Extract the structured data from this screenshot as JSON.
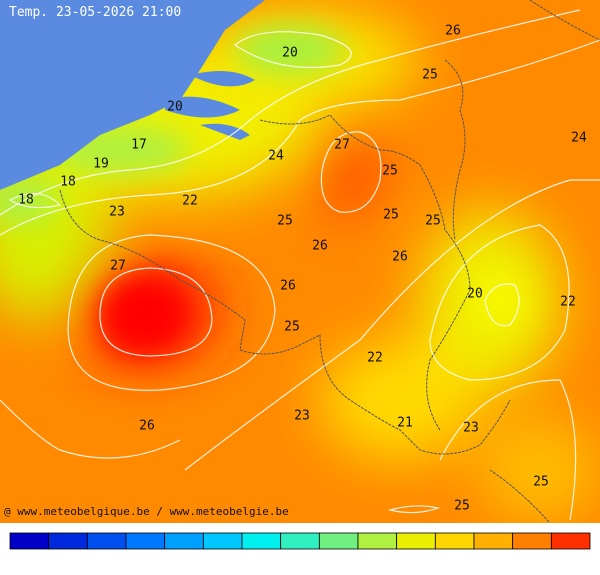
{
  "header": {
    "title": "Temp. 23-05-2026 21:00"
  },
  "map": {
    "labels": [
      26,
      20,
      25,
      20,
      24,
      17,
      27,
      19,
      24,
      25,
      18,
      18,
      22,
      23,
      25,
      25,
      25,
      26,
      26,
      27,
      26,
      20,
      22,
      25,
      22,
      23,
      21,
      23,
      26,
      25,
      25
    ]
  },
  "footer": {
    "credit": "@ www.meteobelgique.be / www.meteobelgie.be"
  },
  "colorbar": {
    "colors": [
      "#0000c8",
      "#0028dc",
      "#0050f0",
      "#0078ff",
      "#00a0ff",
      "#00c8ff",
      "#00f0f0",
      "#30f0c0",
      "#70f080",
      "#b0f040",
      "#e8f000",
      "#ffd700",
      "#ffb000",
      "#ff8000",
      "#ff3000"
    ]
  }
}
